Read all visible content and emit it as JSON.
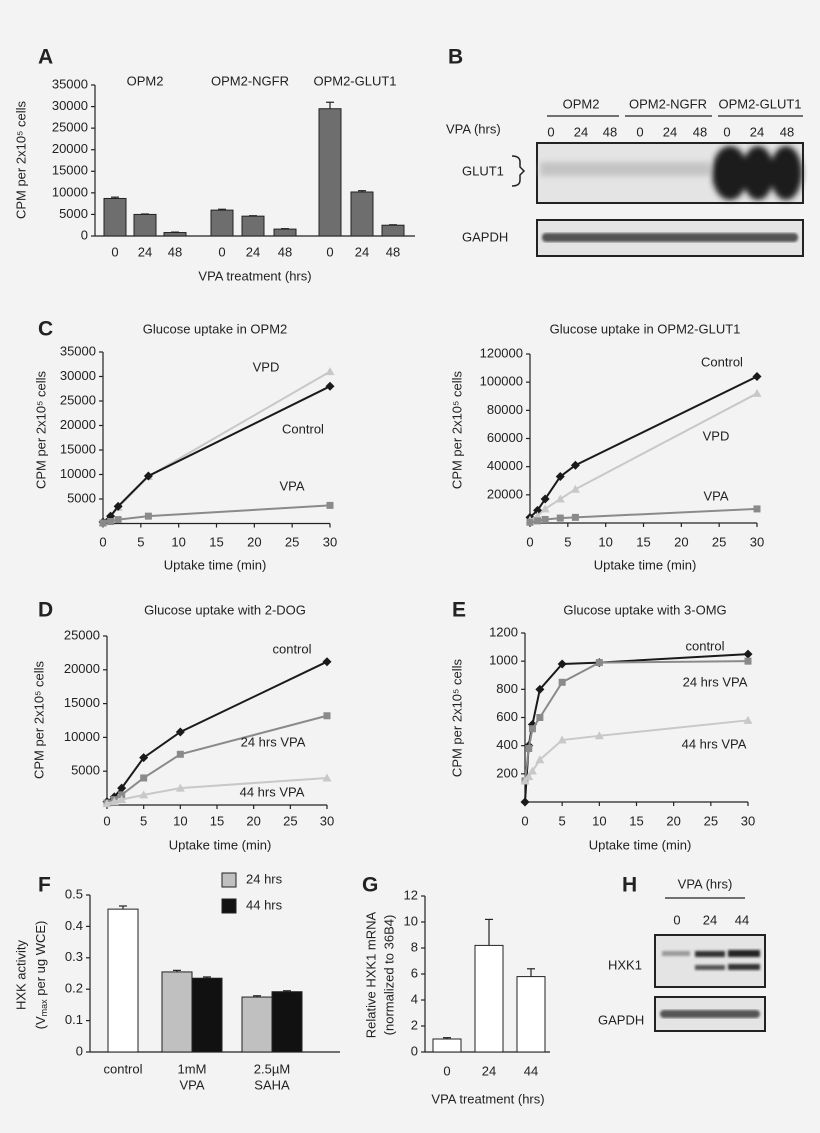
{
  "chart_data": [
    {
      "type": "bar",
      "panel": "A",
      "groups": [
        "OPM2",
        "OPM2-NGFR",
        "OPM2-GLUT1"
      ],
      "categories": [
        "0",
        "24",
        "48",
        "0",
        "24",
        "48",
        "0",
        "24",
        "48"
      ],
      "values": [
        8700,
        5000,
        800,
        6000,
        4600,
        1600,
        29500,
        10200,
        2500
      ],
      "errors": [
        300,
        100,
        100,
        200,
        100,
        100,
        1500,
        300,
        100
      ],
      "color": "#6e6e6e",
      "ylim": [
        0,
        35000
      ],
      "yticks": [
        0,
        5000,
        10000,
        15000,
        20000,
        25000,
        30000,
        35000
      ],
      "xlabel": "VPA treatment (hrs)",
      "ylabel": "CPM per 2x10⁵ cells"
    },
    {
      "type": "line",
      "panel": "C",
      "title": "Glucose uptake in OPM2",
      "x": [
        0,
        1,
        2,
        6,
        30
      ],
      "series": [
        {
          "name": "VPD",
          "color": "#c8c8c8",
          "marker": "triangle",
          "values": [
            200,
            1400,
            3300,
            9600,
            31000
          ]
        },
        {
          "name": "Control",
          "color": "#1a1a1a",
          "marker": "diamond",
          "values": [
            300,
            1500,
            3500,
            9700,
            28000
          ]
        },
        {
          "name": "VPA",
          "color": "#8a8a8a",
          "marker": "square",
          "values": [
            100,
            400,
            800,
            1500,
            3700
          ]
        }
      ],
      "xlim": [
        0,
        30
      ],
      "xticks": [
        0,
        5,
        10,
        15,
        20,
        25,
        30
      ],
      "ylim": [
        0,
        35000
      ],
      "yticks": [
        5000,
        10000,
        15000,
        20000,
        25000,
        30000,
        35000
      ],
      "xlabel": "Uptake time (min)",
      "ylabel": "CPM per 2x10⁵ cells"
    },
    {
      "type": "line",
      "title": "Glucose uptake in OPM2-GLUT1",
      "x": [
        0,
        1,
        2,
        4,
        6,
        30
      ],
      "series": [
        {
          "name": "Control",
          "color": "#1a1a1a",
          "marker": "diamond",
          "values": [
            4000,
            9000,
            17000,
            33000,
            41000,
            104000
          ]
        },
        {
          "name": "VPD",
          "color": "#c8c8c8",
          "marker": "triangle",
          "values": [
            2000,
            5000,
            10000,
            17000,
            24000,
            92000
          ]
        },
        {
          "name": "VPA",
          "color": "#8a8a8a",
          "marker": "square",
          "values": [
            500,
            1500,
            2500,
            3500,
            4000,
            10000
          ]
        }
      ],
      "xlim": [
        0,
        30
      ],
      "xticks": [
        0,
        5,
        10,
        15,
        20,
        25,
        30
      ],
      "ylim": [
        0,
        120000
      ],
      "yticks": [
        20000,
        40000,
        60000,
        80000,
        100000,
        120000
      ],
      "xlabel": "Uptake time (min)",
      "ylabel": "CPM per 2x10⁵ cells"
    },
    {
      "type": "line",
      "panel": "D",
      "title": "Glucose uptake with 2-DOG",
      "x": [
        0,
        1,
        2,
        5,
        10,
        30
      ],
      "series": [
        {
          "name": "control",
          "color": "#1a1a1a",
          "marker": "diamond",
          "values": [
            500,
            1200,
            2500,
            7000,
            10800,
            21200
          ]
        },
        {
          "name": "24 hrs VPA",
          "color": "#8a8a8a",
          "marker": "square",
          "values": [
            300,
            800,
            1500,
            4000,
            7500,
            13200
          ]
        },
        {
          "name": "44 hrs VPA",
          "color": "#c8c8c8",
          "marker": "triangle",
          "values": [
            200,
            500,
            800,
            1500,
            2500,
            4000
          ]
        }
      ],
      "xlim": [
        0,
        30
      ],
      "xticks": [
        0,
        5,
        10,
        15,
        20,
        25,
        30
      ],
      "ylim": [
        0,
        25000
      ],
      "yticks": [
        5000,
        10000,
        15000,
        20000,
        25000
      ],
      "xlabel": "Uptake time (min)",
      "ylabel": "CPM per 2x10⁵ cells"
    },
    {
      "type": "line",
      "panel": "E",
      "title": "Glucose uptake with 3-OMG",
      "x": [
        0,
        0.5,
        1,
        2,
        5,
        10,
        30
      ],
      "series": [
        {
          "name": "control",
          "color": "#1a1a1a",
          "marker": "diamond",
          "values": [
            0,
            400,
            550,
            800,
            980,
            990,
            1050
          ]
        },
        {
          "name": "24 hrs VPA",
          "color": "#8a8a8a",
          "marker": "square",
          "values": [
            150,
            380,
            520,
            600,
            850,
            990,
            1000
          ]
        },
        {
          "name": "44 hrs VPA",
          "color": "#c8c8c8",
          "marker": "triangle",
          "values": [
            150,
            180,
            220,
            300,
            440,
            470,
            580
          ]
        }
      ],
      "xlim": [
        0,
        30
      ],
      "xticks": [
        0,
        5,
        10,
        15,
        20,
        25,
        30
      ],
      "ylim": [
        0,
        1200
      ],
      "yticks": [
        200,
        400,
        600,
        800,
        1000,
        1200
      ],
      "xlabel": "Uptake time (min)",
      "ylabel": "CPM per 2x10⁵ cells"
    },
    {
      "type": "bar",
      "panel": "F",
      "categories": [
        [
          "control"
        ],
        [
          "1mM",
          "VPA"
        ],
        [
          "2.5µM",
          "SAHA"
        ]
      ],
      "series": [
        {
          "color": "#ffffff",
          "values": [
            0.455,
            null,
            null
          ],
          "errors": [
            0.01,
            null,
            null
          ]
        },
        {
          "name": "24 hrs",
          "color": "#c0c0c0",
          "values": [
            null,
            0.255,
            0.175
          ],
          "errors": [
            null,
            0.005,
            0.004
          ]
        },
        {
          "name": "44 hrs",
          "color": "#111111",
          "values": [
            null,
            0.235,
            0.192
          ],
          "errors": [
            null,
            0.004,
            0.003
          ]
        }
      ],
      "ylim": [
        0,
        0.5
      ],
      "yticks": [
        0,
        0.1,
        0.2,
        0.3,
        0.4,
        0.5
      ],
      "ylabel": "HXK activity",
      "ylabel2": {
        "pre": "(V",
        "sub": "max",
        "post": " per ug WCE)"
      }
    },
    {
      "type": "bar",
      "panel": "G",
      "categories": [
        "0",
        "24",
        "44"
      ],
      "values": [
        1,
        8.2,
        5.8
      ],
      "errors": [
        0.1,
        2.0,
        0.6
      ],
      "color": "#ffffff",
      "ylim": [
        0,
        12
      ],
      "yticks": [
        0,
        2,
        4,
        6,
        8,
        10,
        12
      ],
      "xlabel": "VPA treatment (hrs)",
      "ylabel": "Relative HXK1 mRNA",
      "ylabel2": "(normalized to 36B4)"
    }
  ],
  "blots": [
    {
      "panel": "B",
      "groups": [
        "OPM2",
        "OPM2-NGFR",
        "OPM2-GLUT1"
      ],
      "treatment": "VPA (hrs)",
      "lanes": [
        "0",
        "24",
        "48",
        "0",
        "24",
        "48",
        "0",
        "24",
        "48"
      ],
      "rows": [
        "GLUT1",
        "GAPDH"
      ]
    },
    {
      "panel": "H",
      "treatment": "VPA (hrs)",
      "lanes": [
        "0",
        "24",
        "44"
      ],
      "rows": [
        "HXK1",
        "GAPDH"
      ]
    }
  ]
}
